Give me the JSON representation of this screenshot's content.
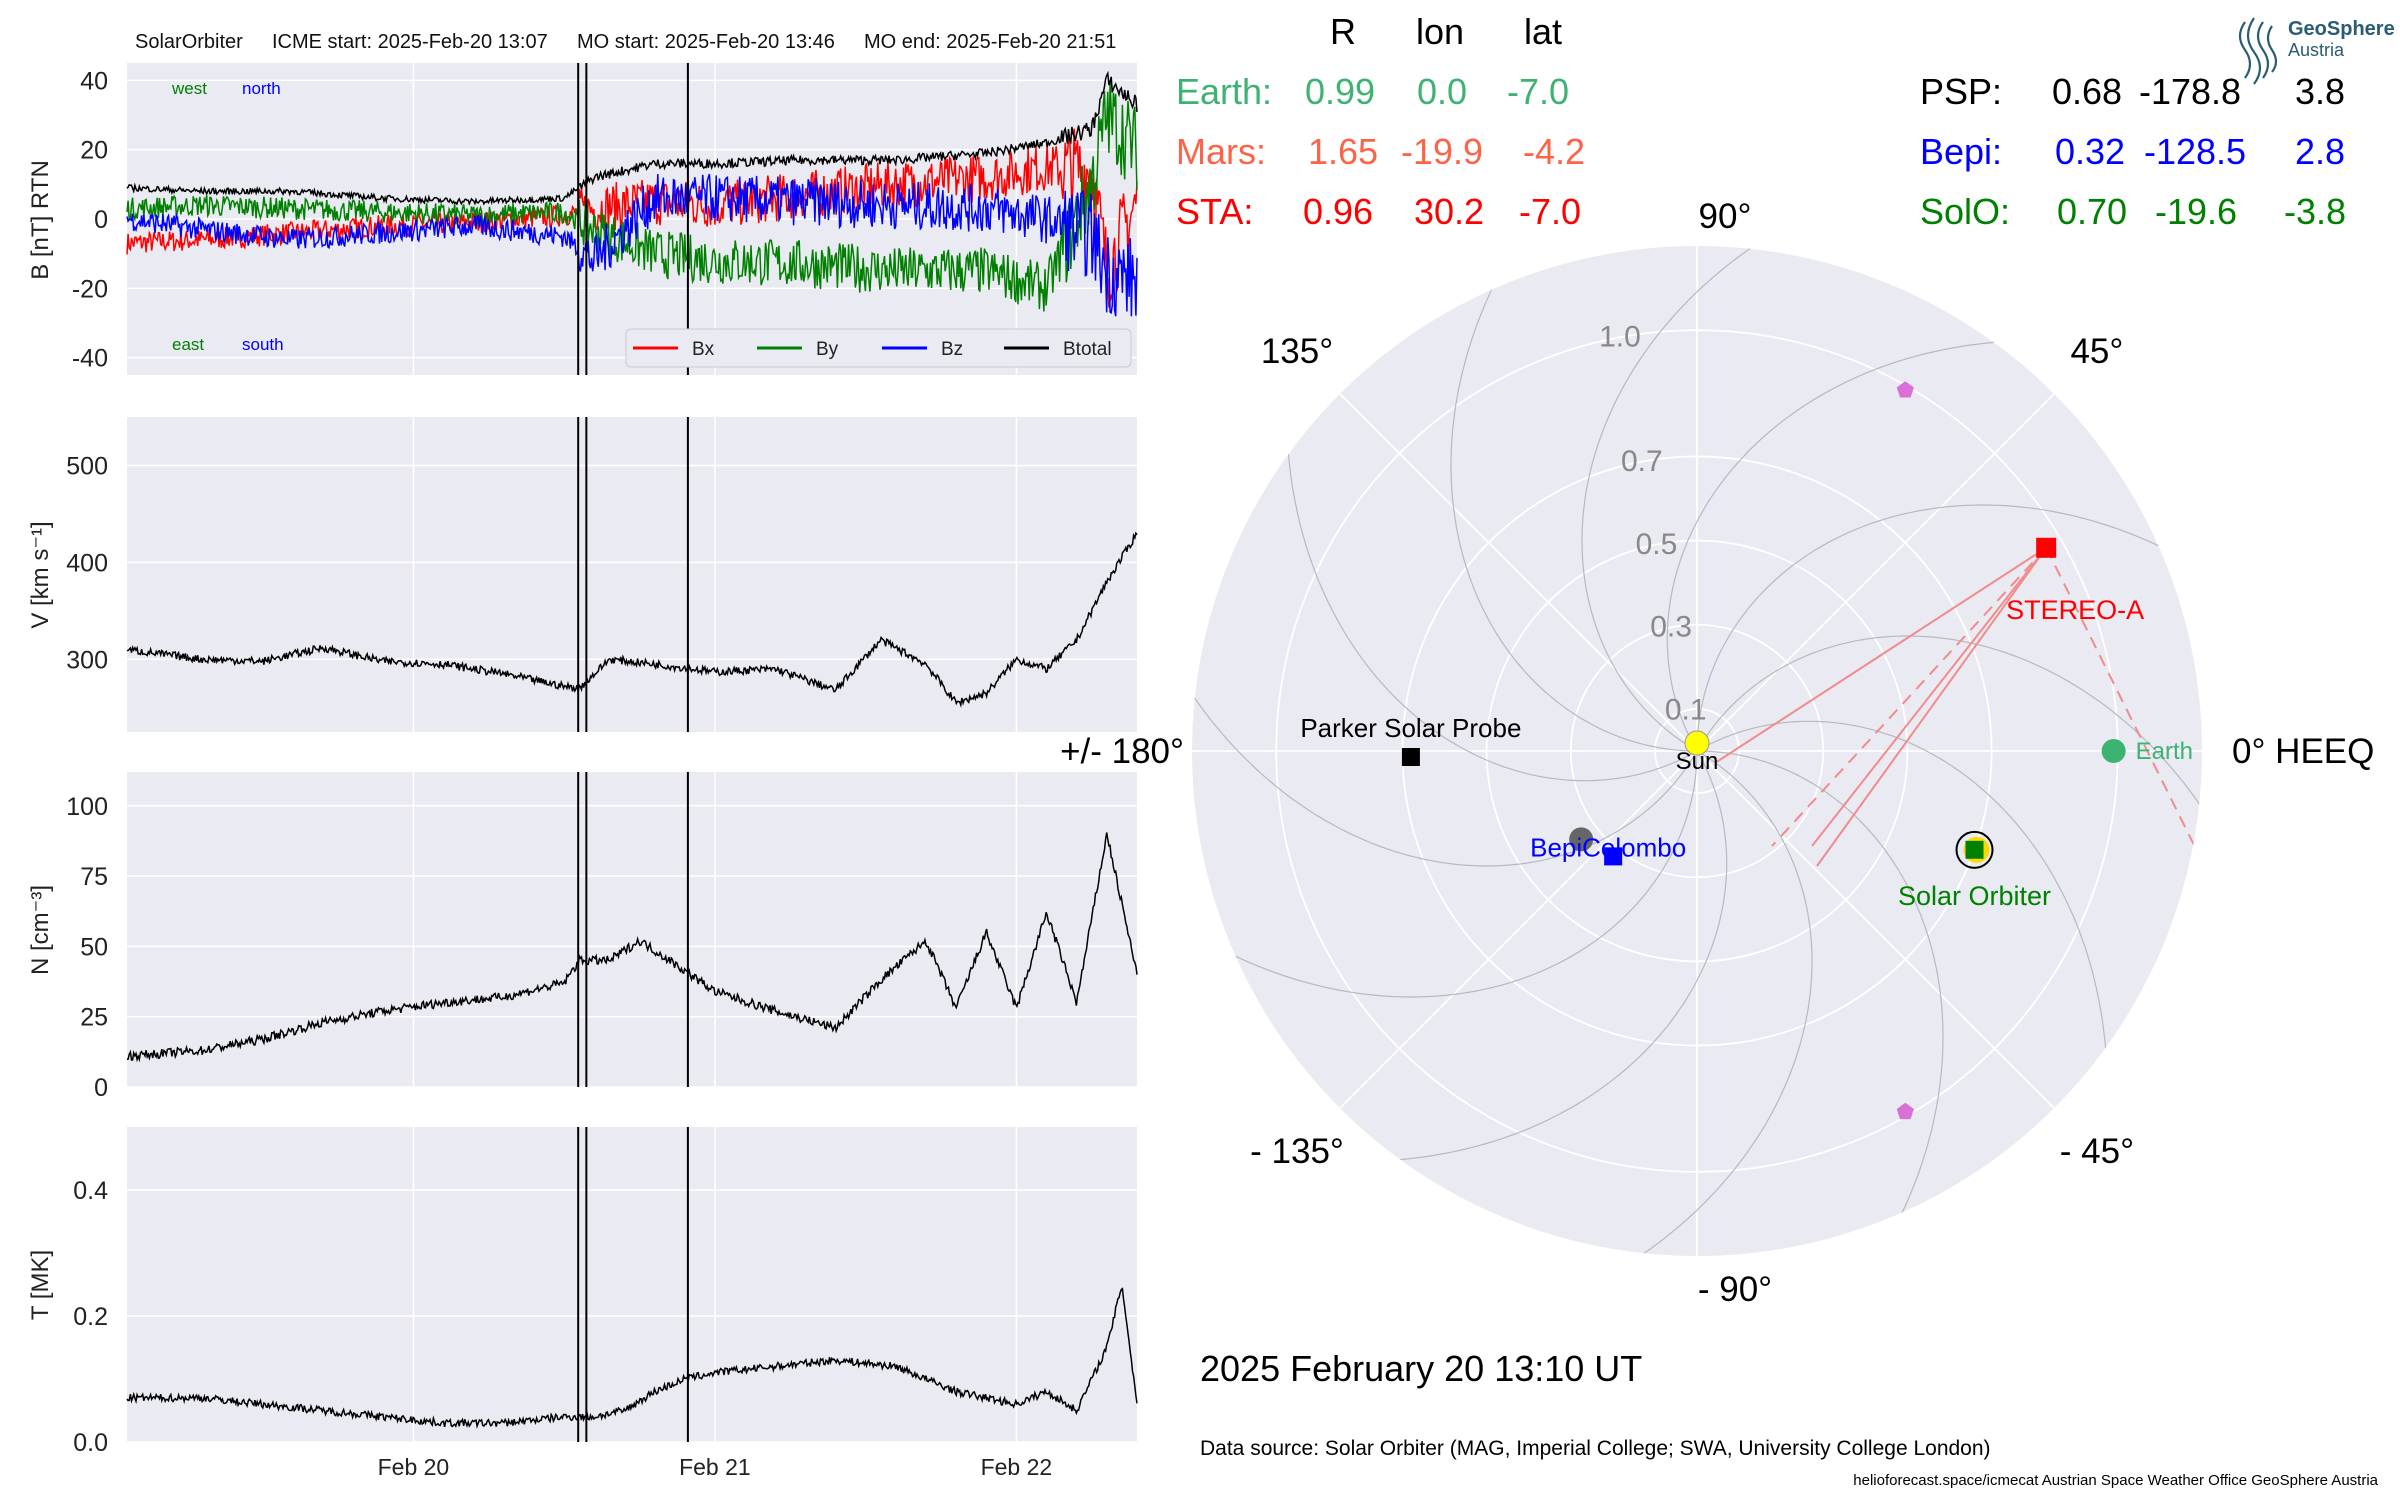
{
  "header": {
    "spacecraft": "SolarOrbiter",
    "icme_start": "ICME start: 2025-Feb-20 13:07",
    "mo_start": "MO start: 2025-Feb-20 13:46",
    "mo_end": "MO end: 2025-Feb-20 21:51"
  },
  "colors": {
    "bx": "#ff0000",
    "by": "#008000",
    "bz": "#0000ff",
    "btotal": "#000000",
    "panel_bg": "#eaeaf2",
    "earth": "#3cb371",
    "mars": "#ff6347",
    "sta": "#ff0000",
    "psp": "#000000",
    "bepi": "#0000ff",
    "solo": "#008000",
    "sun": "#ffff00",
    "l_point": "#da70d6"
  },
  "time_axis": {
    "start_day": 19.05,
    "end_day": 22.4,
    "ticks": [
      {
        "day": 20,
        "label": "Feb 20"
      },
      {
        "day": 21,
        "label": "Feb 21"
      },
      {
        "day": 22,
        "label": "Feb 22"
      }
    ],
    "event_lines_day": [
      20.5465,
      20.5736,
      20.9104
    ]
  },
  "chart_data": [
    {
      "type": "line",
      "panel": "B",
      "ylabel": "B [nT] RTN",
      "ylim": [
        -45,
        45
      ],
      "yticks": [
        -40,
        -20,
        0,
        20,
        40
      ],
      "labels": {
        "west": "west",
        "north": "north",
        "east": "east",
        "south": "south"
      },
      "series": [
        {
          "name": "Bx",
          "x": [
            19.05,
            19.3,
            19.6,
            19.9,
            20.2,
            20.5,
            20.6,
            20.8,
            21.0,
            21.3,
            21.6,
            21.9,
            22.1,
            22.25,
            22.3,
            22.4
          ],
          "y": [
            -7,
            -6,
            -4,
            -2,
            -1,
            1,
            3,
            5,
            4,
            7,
            10,
            12,
            15,
            14,
            -15,
            5
          ]
        },
        {
          "name": "By",
          "x": [
            19.05,
            19.3,
            19.6,
            19.9,
            20.2,
            20.5,
            20.6,
            20.8,
            21.0,
            21.3,
            21.6,
            21.9,
            22.1,
            22.25,
            22.3,
            22.4
          ],
          "y": [
            3,
            4,
            3,
            2,
            1,
            2,
            -3,
            -10,
            -12,
            -13,
            -15,
            -15,
            -20,
            10,
            30,
            20
          ]
        },
        {
          "name": "Bz",
          "x": [
            19.05,
            19.3,
            19.6,
            19.9,
            20.2,
            20.5,
            20.6,
            20.8,
            21.0,
            21.3,
            21.6,
            21.9,
            22.1,
            22.25,
            22.3,
            22.4
          ],
          "y": [
            0,
            -3,
            -6,
            -4,
            -2,
            -5,
            -12,
            6,
            6,
            5,
            4,
            3,
            0,
            -5,
            -15,
            -18
          ]
        },
        {
          "name": "Btotal",
          "x": [
            19.05,
            19.3,
            19.6,
            19.9,
            20.2,
            20.5,
            20.6,
            20.8,
            21.0,
            21.3,
            21.6,
            21.9,
            22.1,
            22.25,
            22.3,
            22.4
          ],
          "y": [
            9,
            8,
            8,
            6,
            5,
            6,
            12,
            16,
            16,
            17,
            17,
            19,
            22,
            26,
            40,
            33
          ]
        }
      ]
    },
    {
      "type": "line",
      "panel": "V",
      "ylabel": "V [km s⁻¹]",
      "ylim": [
        225,
        550
      ],
      "yticks": [
        300,
        400,
        500
      ],
      "series": [
        {
          "name": "V",
          "x": [
            19.05,
            19.3,
            19.5,
            19.7,
            19.9,
            20.1,
            20.3,
            20.5,
            20.55,
            20.65,
            20.8,
            21.0,
            21.2,
            21.4,
            21.55,
            21.7,
            21.8,
            21.9,
            22.0,
            22.1,
            22.2,
            22.3,
            22.4
          ],
          "y": [
            310,
            300,
            298,
            312,
            298,
            295,
            285,
            272,
            270,
            300,
            295,
            287,
            290,
            268,
            320,
            295,
            255,
            265,
            300,
            290,
            320,
            380,
            430
          ]
        }
      ]
    },
    {
      "type": "line",
      "panel": "N",
      "ylabel": "N [cm⁻³]",
      "ylim": [
        0,
        112
      ],
      "yticks": [
        0,
        25,
        50,
        75,
        100
      ],
      "series": [
        {
          "name": "N",
          "x": [
            19.05,
            19.3,
            19.5,
            19.7,
            19.9,
            20.1,
            20.3,
            20.5,
            20.55,
            20.65,
            20.75,
            20.85,
            21.0,
            21.2,
            21.4,
            21.55,
            21.7,
            21.8,
            21.9,
            22.0,
            22.1,
            22.2,
            22.3,
            22.4
          ],
          "y": [
            11,
            13,
            17,
            23,
            27,
            30,
            32,
            37,
            45,
            45,
            52,
            45,
            34,
            27,
            21,
            38,
            52,
            28,
            55,
            28,
            62,
            30,
            90,
            40
          ]
        }
      ]
    },
    {
      "type": "line",
      "panel": "T",
      "ylabel": "T [MK]",
      "ylim": [
        0,
        0.5
      ],
      "yticks": [
        0.0,
        0.2,
        0.4
      ],
      "series": [
        {
          "name": "T",
          "x": [
            19.05,
            19.3,
            19.5,
            19.7,
            19.9,
            20.1,
            20.3,
            20.5,
            20.6,
            20.7,
            20.8,
            20.9,
            21.0,
            21.2,
            21.4,
            21.6,
            21.8,
            22.0,
            22.1,
            22.2,
            22.3,
            22.35,
            22.4
          ],
          "y": [
            0.07,
            0.07,
            0.06,
            0.05,
            0.04,
            0.03,
            0.03,
            0.04,
            0.04,
            0.05,
            0.08,
            0.1,
            0.11,
            0.12,
            0.13,
            0.12,
            0.08,
            0.06,
            0.08,
            0.05,
            0.15,
            0.25,
            0.06
          ]
        }
      ]
    },
    {
      "type": "scatter",
      "panel": "polar",
      "coordinate_system": "HEEQ",
      "r_ticks": [
        {
          "r": 0.1,
          "label": "0.1"
        },
        {
          "r": 0.3,
          "label": "0.3"
        },
        {
          "r": 0.5,
          "label": "0.5"
        },
        {
          "r": 0.7,
          "label": "0.7"
        },
        {
          "r": 1.0,
          "label": "1.0"
        }
      ],
      "angle_labels": [
        {
          "deg": 0,
          "label": "0° HEEQ"
        },
        {
          "deg": 45,
          "label": "45°"
        },
        {
          "deg": 90,
          "label": "90°"
        },
        {
          "deg": 135,
          "label": "135°"
        },
        {
          "deg": 180,
          "label": "+/- 180°"
        },
        {
          "deg": -135,
          "label": "- 135°"
        },
        {
          "deg": -90,
          "label": "- 90°"
        },
        {
          "deg": -45,
          "label": "- 45°"
        }
      ],
      "points": [
        {
          "name": "Sun",
          "r": 0,
          "lon": 0
        },
        {
          "name": "Earth",
          "r": 0.99,
          "lon": 0.0
        },
        {
          "name": "STEREO-A",
          "r": 0.96,
          "lon": 30.2
        },
        {
          "name": "Solar Orbiter",
          "r": 0.7,
          "lon": -19.6
        },
        {
          "name": "Parker Solar Probe",
          "r": 0.68,
          "lon": -178.8
        },
        {
          "name": "BepiColombo",
          "r": 0.32,
          "lon": -128.5
        },
        {
          "name": "Mars",
          "r": 1.65,
          "lon": -19.9
        }
      ],
      "l_points": [
        {
          "r": 0.99,
          "lon": 60
        },
        {
          "r": 0.99,
          "lon": -60
        }
      ]
    }
  ],
  "position_table": {
    "headers": [
      "R",
      "lon",
      "lat"
    ],
    "left": [
      {
        "name": "Earth:",
        "r": "0.99",
        "lon": "0.0",
        "lat": "-7.0"
      },
      {
        "name": "Mars:",
        "r": "1.65",
        "lon": "-19.9",
        "lat": "-4.2"
      },
      {
        "name": "STA:",
        "r": "0.96",
        "lon": "30.2",
        "lat": "-7.0"
      }
    ],
    "right": [
      {
        "name": "PSP:",
        "r": "0.68",
        "lon": "-178.8",
        "lat": "3.8"
      },
      {
        "name": "Bepi:",
        "r": "0.32",
        "lon": "-128.5",
        "lat": "2.8"
      },
      {
        "name": "SolO:",
        "r": "0.70",
        "lon": "-19.6",
        "lat": "-3.8"
      }
    ]
  },
  "legend": [
    "Bx",
    "By",
    "Bz",
    "Btotal"
  ],
  "logo": {
    "line1": "GeoSphere",
    "line2": "Austria"
  },
  "footer": {
    "date": "2025 February 20  13:10 UT",
    "data_source": "Data source: Solar Orbiter (MAG, Imperial College; SWA, University College London)",
    "credits": "helioforecast.space/icmecat   Austrian Space Weather Office   GeoSphere Austria"
  }
}
